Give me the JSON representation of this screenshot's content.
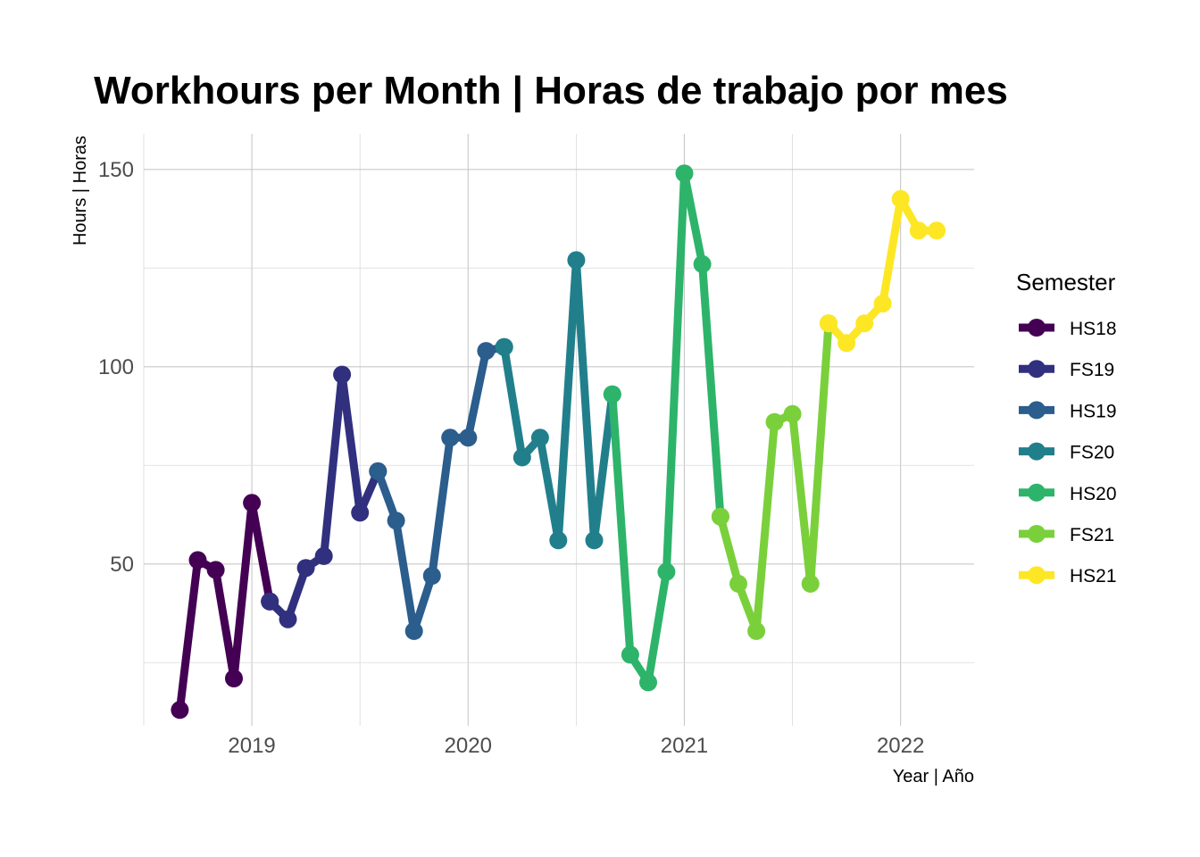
{
  "chart_data": {
    "type": "line",
    "title": "Workhours per Month | Horas de trabajo por mes",
    "xlabel": "Year | Año",
    "ylabel": "Hours | Horas",
    "xlim": [
      2018.5,
      2022.34
    ],
    "ylim": [
      9,
      159
    ],
    "x_ticks": [
      2019,
      2020,
      2021,
      2022
    ],
    "x_tick_labels": [
      "2019",
      "2020",
      "2021",
      "2022"
    ],
    "y_ticks": [
      50,
      100,
      150
    ],
    "y_tick_labels": [
      "50",
      "100",
      "150"
    ],
    "grid": true,
    "legend": {
      "title": "Semester",
      "position": "right"
    },
    "series": [
      {
        "name": "HS18",
        "color": "#440154",
        "points": [
          [
            2018.667,
            13
          ],
          [
            2018.75,
            51
          ],
          [
            2018.833,
            48.5
          ],
          [
            2018.917,
            21
          ],
          [
            2019.0,
            65.5
          ],
          [
            2019.083,
            40.5
          ]
        ]
      },
      {
        "name": "FS19",
        "color": "#31307F",
        "points": [
          [
            2019.083,
            40.5
          ],
          [
            2019.167,
            36
          ],
          [
            2019.25,
            49
          ],
          [
            2019.333,
            52
          ],
          [
            2019.417,
            98
          ],
          [
            2019.5,
            63
          ],
          [
            2019.583,
            73.5
          ]
        ]
      },
      {
        "name": "HS19",
        "color": "#2B5D8D",
        "points": [
          [
            2019.583,
            73.5
          ],
          [
            2019.667,
            61
          ],
          [
            2019.75,
            33
          ],
          [
            2019.833,
            47
          ],
          [
            2019.917,
            82
          ],
          [
            2020.0,
            82
          ],
          [
            2020.083,
            104
          ],
          [
            2020.167,
            105
          ]
        ]
      },
      {
        "name": "FS20",
        "color": "#217F8C",
        "points": [
          [
            2020.167,
            105
          ],
          [
            2020.25,
            77
          ],
          [
            2020.333,
            82
          ],
          [
            2020.417,
            56
          ],
          [
            2020.5,
            127
          ],
          [
            2020.583,
            56
          ],
          [
            2020.667,
            93
          ]
        ]
      },
      {
        "name": "HS20",
        "color": "#2DB46A",
        "points": [
          [
            2020.667,
            93
          ],
          [
            2020.75,
            27
          ],
          [
            2020.833,
            20
          ],
          [
            2020.917,
            48
          ],
          [
            2021.0,
            149
          ],
          [
            2021.083,
            126
          ],
          [
            2021.167,
            62
          ]
        ]
      },
      {
        "name": "FS21",
        "color": "#7AD03B",
        "points": [
          [
            2021.167,
            62
          ],
          [
            2021.25,
            45
          ],
          [
            2021.333,
            33
          ],
          [
            2021.417,
            86
          ],
          [
            2021.5,
            88
          ],
          [
            2021.583,
            45
          ],
          [
            2021.667,
            111
          ]
        ]
      },
      {
        "name": "HS21",
        "color": "#FDE725",
        "points": [
          [
            2021.667,
            111
          ],
          [
            2021.75,
            106
          ],
          [
            2021.833,
            111
          ],
          [
            2021.917,
            116
          ],
          [
            2022.0,
            142.5
          ],
          [
            2022.083,
            134.5
          ],
          [
            2022.167,
            134.5
          ]
        ]
      }
    ]
  }
}
